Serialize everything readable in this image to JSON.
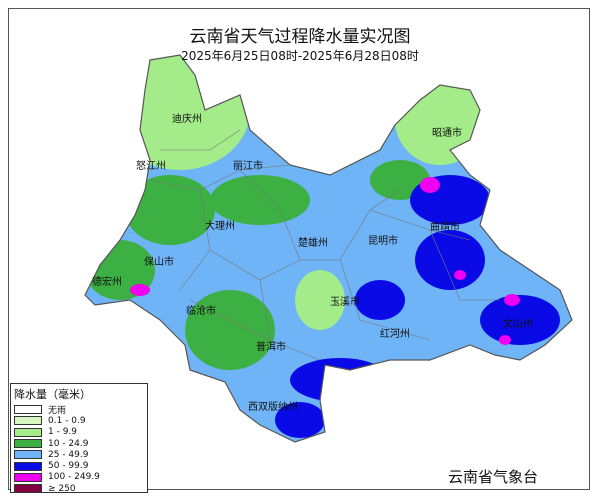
{
  "title": "云南省天气过程降水量实况图",
  "subtitle": "2025年6月25日08时-2025年6月28日08时",
  "agency": "云南省气象台",
  "cities": [
    "迪庆州",
    "昭通市",
    "怒江州",
    "丽江市",
    "曲靖市",
    "大理州",
    "楚雄州",
    "昆明市",
    "保山市",
    "德宏州",
    "临沧市",
    "玉溪市",
    "文山州",
    "红河州",
    "普洱市",
    "西双版纳州"
  ],
  "legend": {
    "title": "降水量（毫米）",
    "items": [
      {
        "label": "无雨",
        "color": "#ffffff"
      },
      {
        "label": "0.1 - 0.9",
        "color": "#d8f7c0"
      },
      {
        "label": "1 -  9.9",
        "color": "#a4ec8a"
      },
      {
        "label": "10 - 24.9",
        "color": "#3cb043"
      },
      {
        "label": "25 - 49.9",
        "color": "#6fb4f7"
      },
      {
        "label": "50 - 99.9",
        "color": "#0a0ae6"
      },
      {
        "label": "100 - 249.9",
        "color": "#f000f0"
      },
      {
        "label": "≥ 250",
        "color": "#800040"
      }
    ]
  }
}
